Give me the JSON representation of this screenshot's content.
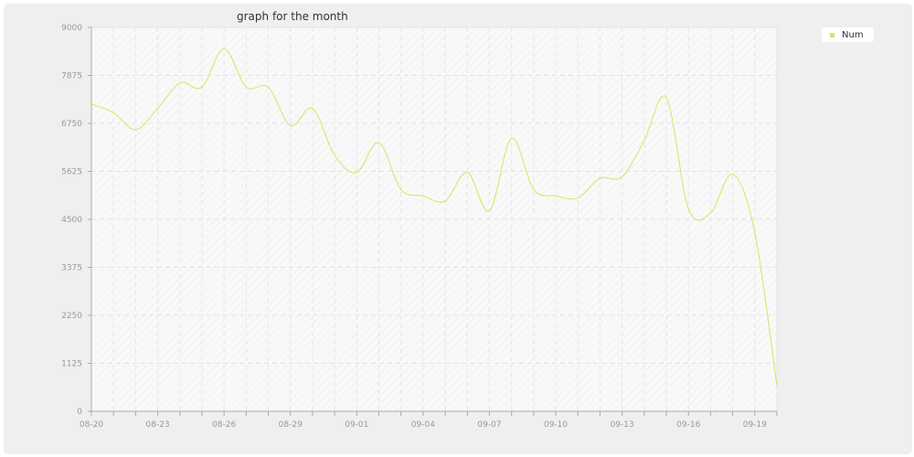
{
  "chart_data": {
    "type": "line",
    "title": "graph for the month",
    "xlabel": "",
    "ylabel": "",
    "x": [
      "08-20",
      "08-21",
      "08-22",
      "08-23",
      "08-24",
      "08-25",
      "08-26",
      "08-27",
      "08-28",
      "08-29",
      "08-30",
      "08-31",
      "09-01",
      "09-02",
      "09-03",
      "09-04",
      "09-05",
      "09-06",
      "09-07",
      "09-08",
      "09-09",
      "09-10",
      "09-11",
      "09-12",
      "09-13",
      "09-14",
      "09-15",
      "09-16",
      "09-17",
      "09-18",
      "09-19",
      "09-20"
    ],
    "x_tick_labels": [
      "08-20",
      "08-23",
      "08-26",
      "08-29",
      "09-01",
      "09-04",
      "09-07",
      "09-10",
      "09-13",
      "09-16",
      "09-19"
    ],
    "y_ticks": [
      0,
      1125,
      2250,
      3375,
      4500,
      5625,
      6750,
      7875,
      9000
    ],
    "ylim": [
      0,
      9000
    ],
    "series": [
      {
        "name": "Num",
        "color": "#d3e561",
        "values": [
          7200,
          7000,
          6600,
          7100,
          7700,
          7600,
          8500,
          7600,
          7600,
          6700,
          7100,
          6000,
          5600,
          6300,
          5200,
          5050,
          4930,
          5600,
          4700,
          6400,
          5200,
          5050,
          5000,
          5460,
          5500,
          6350,
          7350,
          4750,
          4650,
          5560,
          4200,
          600
        ]
      }
    ],
    "grid": true,
    "legend_position": "top-right"
  }
}
